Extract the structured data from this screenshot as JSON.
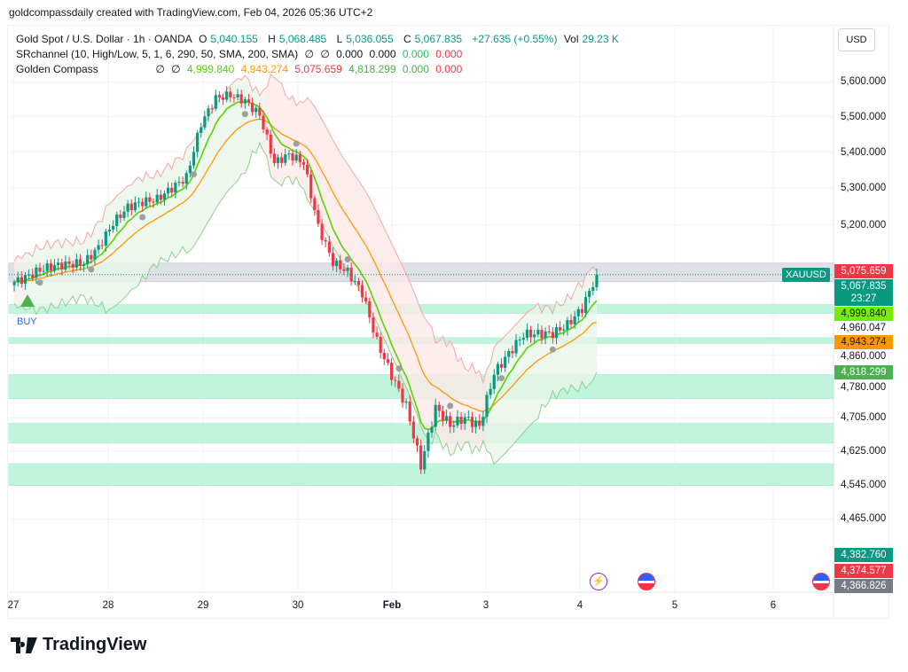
{
  "credit": "goldcompassdaily created with TradingView.com, Feb 04, 2026 05:36 UTC+2",
  "header": {
    "symbol_line": "Gold Spot / U.S. Dollar · 1h · OANDA",
    "open_label": "O",
    "open": "5,040.155",
    "high_label": "H",
    "high": "5,068.485",
    "low_label": "L",
    "low": "5,036.055",
    "close_label": "C",
    "close": "5,067.835",
    "change": "+27.635 (+0.55%)",
    "vol_label": "Vol",
    "vol": "29.23 K"
  },
  "indicators": [
    {
      "name": "SRchannel (10, High/Low, 5, 1, 6, 290, 50, SMA, 200, SMA)",
      "values": [
        "∅",
        "∅",
        "0.000",
        "0.000",
        "0.000",
        "0.000"
      ]
    },
    {
      "name": "Golden Compass",
      "values": [
        "∅",
        "∅",
        "4,999.840",
        "4,943.274",
        "5,075.659",
        "4,818.299",
        "0.000",
        "0.000"
      ]
    }
  ],
  "currency_button": "USD",
  "symbol_tag": "XAUUSD",
  "countdown": "23:27",
  "buy_label": "BUY",
  "logo_text": "TradingView",
  "price_axis": {
    "scale": "log",
    "ticks": [
      "5,600.000",
      "5,500.000",
      "5,400.000",
      "5,300.000",
      "5,200.000",
      "4,860.000",
      "4,780.000",
      "4,705.000",
      "4,625.000",
      "4,545.000",
      "4,465.000"
    ],
    "tick_values": [
      5600,
      5500,
      5400,
      5300,
      5200,
      4860,
      4780,
      4705,
      4625,
      4545,
      4465
    ],
    "extra_label": "4,960.047"
  },
  "badges": [
    {
      "text": "5,075.659",
      "value": 5075.659,
      "color": "#f23645"
    },
    {
      "text": "4,999.840",
      "value": 4999.84,
      "color": "#76ee00",
      "dark": true
    },
    {
      "text": "4,943.274",
      "value": 4943.274,
      "color": "#ff9800",
      "dark": true
    },
    {
      "text": "4,818.299",
      "value": 4818.299,
      "color": "#4caf50"
    },
    {
      "text": "4,382.760",
      "value": 4382.76,
      "color": "#089981"
    },
    {
      "text": "4,374.577",
      "value": 4374.577,
      "color": "#f23645"
    },
    {
      "text": "4,366.826",
      "value": 4366.826,
      "color": "#787b86"
    }
  ],
  "time_axis": [
    "27",
    "28",
    "29",
    "30",
    "Feb",
    "3",
    "4",
    "5",
    "6"
  ],
  "colors": {
    "up": "#089981",
    "down": "#f23645",
    "fast_ma": "#55d400",
    "slow_ma": "#ff9800",
    "upper_band": "#f7a5a5",
    "lower_band": "#8fd18f",
    "zone": "#b6f2d6",
    "resistance_zone": "#d1d4dc"
  },
  "chart_data": {
    "type": "candlestick",
    "last_price": 5067.835,
    "price_path": [
      5044,
      5060,
      5080,
      5091,
      5095,
      5098,
      5140,
      5205,
      5248,
      5262,
      5270,
      5300,
      5330,
      5480,
      5553,
      5562,
      5545,
      5505,
      5370,
      5393,
      5370,
      5195,
      5100,
      5075,
      5020,
      4895,
      4810,
      4735,
      4590,
      4730,
      4688,
      4705,
      4685,
      4815,
      4865,
      4913,
      4915,
      4915,
      4938,
      4980,
      5067
    ],
    "zones": [
      {
        "low": 5049,
        "high": 5098,
        "kind": "resistance"
      },
      {
        "low": 4967,
        "high": 4990,
        "kind": "support"
      },
      {
        "low": 4890,
        "high": 4905,
        "kind": "support"
      },
      {
        "low": 4752,
        "high": 4812,
        "kind": "support"
      },
      {
        "low": 4644,
        "high": 4692,
        "kind": "support"
      },
      {
        "low": 4543,
        "high": 4595,
        "kind": "support"
      }
    ]
  }
}
